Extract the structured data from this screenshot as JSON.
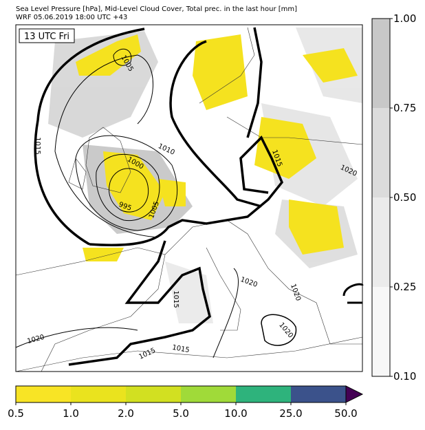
{
  "header": {
    "title": "Sea Level Pressure [hPa], Mid-Level Cloud Cover, Total prec. in the last hour [mm]",
    "subtitle": "WRF 05.06.2019 18:00 UTC +43"
  },
  "map": {
    "time_label": "13 UTC Fri",
    "isobar_labels": [
      "1005",
      "1015",
      "1010",
      "1000",
      "995",
      "1005",
      "1015",
      "1020",
      "1020",
      "1020",
      "1015",
      "1020",
      "1015",
      "1015",
      "1020"
    ]
  },
  "cloud_colorbar": {
    "ticks": [
      "0.10",
      "0.25",
      "0.50",
      "0.75",
      "1.00"
    ],
    "colors": [
      "#f7f7f7",
      "#ebebeb",
      "#dcdcdc",
      "#c8c8c8"
    ]
  },
  "precip_colorbar": {
    "ticks": [
      "0.5",
      "1.0",
      "2.0",
      "5.0",
      "10.0",
      "25.0",
      "50.0"
    ],
    "colors": [
      "#f8e425",
      "#eae31e",
      "#d2e021",
      "#a0da39",
      "#2eb37c",
      "#3b528b"
    ],
    "over_color": "#440154"
  }
}
